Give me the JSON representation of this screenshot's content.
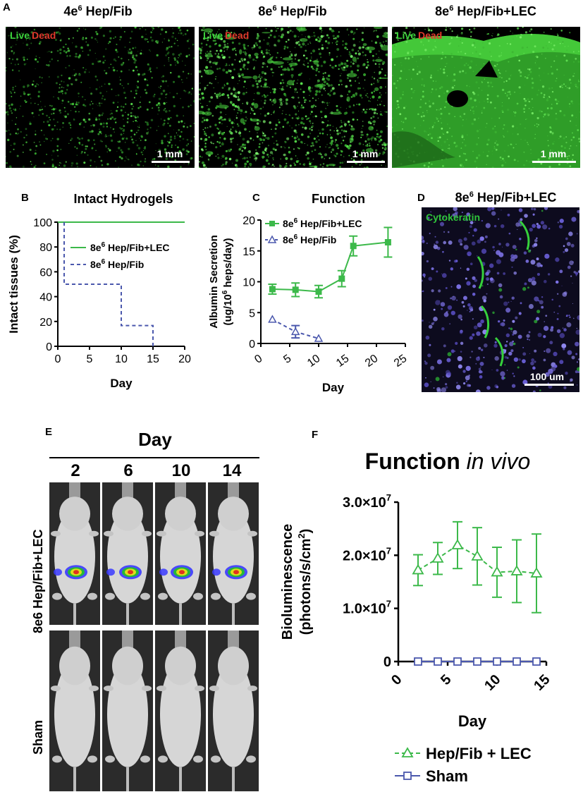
{
  "panels": {
    "A": {
      "letter": "A",
      "images": [
        {
          "title_base": "4e",
          "title_sup": "6",
          "title_rest": " Hep/Fib",
          "live": "Live",
          "dead": "Dead",
          "scale": "1 mm"
        },
        {
          "title_base": "8e",
          "title_sup": "6",
          "title_rest": " Hep/Fib",
          "live": "Live",
          "dead": "Dead",
          "scale": "1 mm"
        },
        {
          "title_base": "8e",
          "title_sup": "6",
          "title_rest": " Hep/Fib+LEC",
          "live": "Live",
          "dead": "Dead",
          "scale": "1 mm"
        }
      ]
    },
    "B": {
      "letter": "B"
    },
    "C": {
      "letter": "C"
    },
    "D": {
      "letter": "D",
      "title_base": "8e",
      "title_sup": "6",
      "title_rest": " Hep/Fib+LEC",
      "stain": "Cytokeratin",
      "scale": "100 um"
    },
    "E": {
      "letter": "E",
      "day_label": "Day",
      "days": [
        "2",
        "6",
        "10",
        "14"
      ],
      "row1_label": "8e6 Hep/Fib+LEC",
      "row2_label": "Sham"
    },
    "F": {
      "letter": "F"
    }
  },
  "chart_data": [
    {
      "panel": "B",
      "type": "line",
      "title": "Intact Hydrogels",
      "xlabel": "Day",
      "ylabel": "Intact tissues (%)",
      "xlim": [
        0,
        20
      ],
      "ylim": [
        0,
        100
      ],
      "xticks": [
        "0",
        "5",
        "10",
        "15",
        "20"
      ],
      "yticks": [
        "0",
        "20",
        "40",
        "60",
        "80",
        "100"
      ],
      "legend_position": "top-right",
      "series": [
        {
          "name": "8e6 Hep/Fib+LEC",
          "style": "solid",
          "color": "#3cb94a",
          "x": [
            0,
            20
          ],
          "y": [
            100,
            100
          ]
        },
        {
          "name": "8e6 Hep/Fib",
          "style": "dashed",
          "color": "#4b58ad",
          "x": [
            1,
            1,
            10,
            10,
            15,
            15
          ],
          "y": [
            100,
            50,
            50,
            16.7,
            16.7,
            0
          ]
        }
      ]
    },
    {
      "panel": "C",
      "type": "line",
      "title": "Function",
      "xlabel": "Day",
      "ylabel": "Albumin Secretion (ug/10^6 heps/day)",
      "ylabel_line1": "Albumin Secretion",
      "ylabel_line2": "(ug/10",
      "ylabel_sup": "6",
      "ylabel_line2b": " heps/day)",
      "xlim": [
        0,
        25
      ],
      "ylim": [
        0,
        20
      ],
      "xticks": [
        "0",
        "5",
        "10",
        "15",
        "20",
        "25"
      ],
      "yticks": [
        "0",
        "5",
        "10",
        "15",
        "20"
      ],
      "legend_position": "top-left",
      "series": [
        {
          "name": "8e6 Hep/Fib+LEC",
          "style": "solid",
          "marker": "square",
          "color": "#3cb94a",
          "x": [
            2,
            6,
            10,
            14,
            16,
            22
          ],
          "y": [
            8.8,
            8.7,
            8.4,
            10.5,
            15.8,
            16.4
          ],
          "err": [
            0.8,
            1.1,
            1.0,
            1.3,
            1.6,
            2.4
          ]
        },
        {
          "name": "8e6 Hep/Fib",
          "style": "dashed",
          "marker": "triangle-open",
          "color": "#4b58ad",
          "x": [
            2,
            6,
            10
          ],
          "y": [
            3.9,
            1.9,
            0.8
          ],
          "err": [
            0,
            1.0,
            0
          ]
        }
      ]
    },
    {
      "panel": "F",
      "type": "line",
      "title": "Function in vivo",
      "title_normal": "Function",
      "title_italic": "in vivo",
      "xlabel": "Day",
      "ylabel_line1": "Bioluminescence",
      "ylabel_line2": "(photons/s/cm",
      "ylabel_sup": "2",
      "ylabel_line2b": ")",
      "xlim": [
        0,
        15
      ],
      "ylim": [
        0,
        30000000
      ],
      "xticks": [
        "0",
        "5",
        "10",
        "15"
      ],
      "yticks": [
        "0",
        "1.0×10",
        "2.0×10",
        "3.0×10"
      ],
      "ytick_exp": "7",
      "legend_position": "bottom",
      "series": [
        {
          "name": "Hep/Fib + LEC",
          "style": "dashed",
          "marker": "triangle-open",
          "color": "#3cb94a",
          "x": [
            2,
            4,
            6,
            8,
            10,
            12,
            14
          ],
          "y": [
            17200000,
            19400000,
            21900000,
            19800000,
            16800000,
            17000000,
            16600000
          ],
          "err": [
            2900000,
            3000000,
            4400000,
            5400000,
            4700000,
            5900000,
            7400000
          ]
        },
        {
          "name": "Sham",
          "style": "solid",
          "marker": "square-open",
          "color": "#4b58ad",
          "x": [
            2,
            4,
            6,
            8,
            10,
            12,
            14
          ],
          "y": [
            0,
            0,
            0,
            0,
            0,
            0,
            0
          ],
          "err": [
            0,
            0,
            0,
            0,
            0,
            0,
            0
          ]
        }
      ]
    }
  ]
}
